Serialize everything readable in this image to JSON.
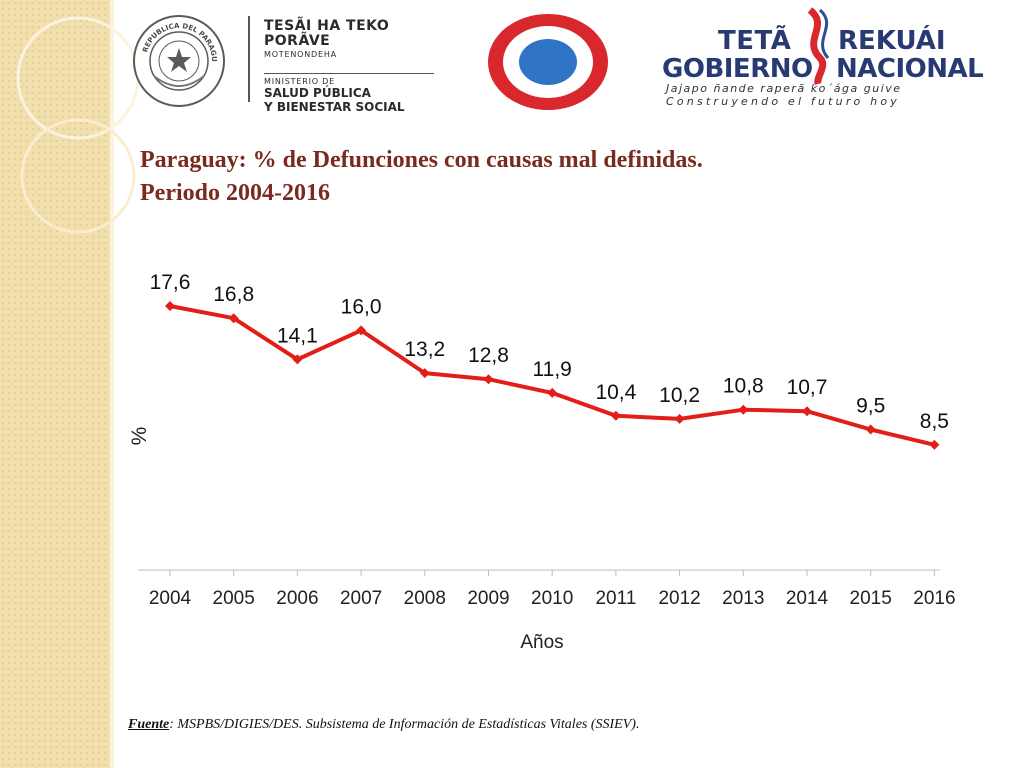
{
  "header": {
    "ministry_lines": [
      "TESÃI HA TEKO",
      "PORÃVE",
      "MOTENONDEHA",
      "MINISTERIO DE",
      "SALUD PÚBLICA",
      "Y BIENESTAR SOCIAL"
    ],
    "seal_text": "REPUBLICA DEL PARAGUAY",
    "gov_line1a": "TETÃ",
    "gov_line1b": "REKUÁI",
    "gov_line2a": "GOBIERNO",
    "gov_line2b": "NACIONAL",
    "gov_slogan1": "Jajapo ñande raperã ko´ága guive",
    "gov_slogan2": "Construyendo el futuro hoy"
  },
  "title": {
    "line1": "Paraguay: % de Defunciones con causas mal definidas.",
    "line2": "Periodo 2004-2016"
  },
  "chart_data": {
    "type": "line",
    "categories": [
      "2004",
      "2005",
      "2006",
      "2007",
      "2008",
      "2009",
      "2010",
      "2011",
      "2012",
      "2013",
      "2014",
      "2015",
      "2016"
    ],
    "values": [
      17.6,
      16.8,
      14.1,
      16.0,
      13.2,
      12.8,
      11.9,
      10.4,
      10.2,
      10.8,
      10.7,
      9.5,
      8.5
    ],
    "data_labels": [
      "17,6",
      "16,8",
      "14,1",
      "16,0",
      "13,2",
      "12,8",
      "11,9",
      "10,4",
      "10,2",
      "10,8",
      "10,7",
      "9,5",
      "8,5"
    ],
    "xlabel": "Años",
    "ylabel": "%",
    "grid": false,
    "legend": "none",
    "line_color": "#e31e18"
  },
  "footer": {
    "source_label": "Fuente",
    "source_text": ": MSPBS/DIGIES/DES. Subsistema de Información de Estadísticas Vitales (SSIEV)."
  }
}
